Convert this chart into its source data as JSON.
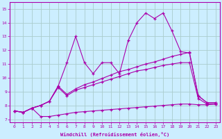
{
  "background_color": "#cceeff",
  "grid_color": "#aacccc",
  "line_color": "#aa00aa",
  "xlabel": "Windchill (Refroidissement éolien,°C)",
  "ylabel_ticks": [
    7,
    8,
    9,
    10,
    11,
    12,
    13,
    14,
    15
  ],
  "xlim": [
    -0.5,
    23.5
  ],
  "ylim": [
    6.8,
    15.5
  ],
  "xticks": [
    0,
    1,
    2,
    3,
    4,
    5,
    6,
    7,
    8,
    9,
    10,
    11,
    12,
    13,
    14,
    15,
    16,
    17,
    18,
    19,
    20,
    21,
    22,
    23
  ],
  "line1_x": [
    0,
    1,
    2,
    3,
    4,
    5,
    6,
    7,
    8,
    9,
    10,
    11,
    12,
    13,
    14,
    15,
    16,
    17,
    18,
    19,
    20,
    21,
    22,
    23
  ],
  "line1_y": [
    7.6,
    7.5,
    7.8,
    7.2,
    7.2,
    7.3,
    7.4,
    7.5,
    7.55,
    7.6,
    7.65,
    7.7,
    7.75,
    7.8,
    7.85,
    7.9,
    7.95,
    8.0,
    8.05,
    8.1,
    8.1,
    8.05,
    8.05,
    8.1
  ],
  "line2_x": [
    0,
    1,
    2,
    3,
    4,
    5,
    6,
    7,
    8,
    9,
    10,
    11,
    12,
    13,
    14,
    15,
    16,
    17,
    18,
    19,
    20,
    21,
    22,
    23
  ],
  "line2_y": [
    7.6,
    7.5,
    7.8,
    8.0,
    8.3,
    9.3,
    8.7,
    9.1,
    9.3,
    9.5,
    9.7,
    9.9,
    10.1,
    10.3,
    10.5,
    10.6,
    10.75,
    10.9,
    11.0,
    11.1,
    11.1,
    8.5,
    8.1,
    8.1
  ],
  "line3_x": [
    0,
    1,
    2,
    3,
    4,
    5,
    6,
    7,
    8,
    9,
    10,
    11,
    12,
    13,
    14,
    15,
    16,
    17,
    18,
    19,
    20,
    21,
    22,
    23
  ],
  "line3_y": [
    7.6,
    7.5,
    7.8,
    8.0,
    8.3,
    9.4,
    8.8,
    9.2,
    9.5,
    9.7,
    9.95,
    10.2,
    10.45,
    10.6,
    10.8,
    11.0,
    11.15,
    11.35,
    11.55,
    11.7,
    11.85,
    8.7,
    8.2,
    8.2
  ],
  "line4_x": [
    0,
    1,
    2,
    3,
    4,
    5,
    6,
    7,
    8,
    9,
    10,
    11,
    12,
    13,
    14,
    15,
    16,
    17,
    18,
    19,
    20,
    21,
    22,
    23
  ],
  "line4_y": [
    7.6,
    7.5,
    7.8,
    8.0,
    8.3,
    9.4,
    11.1,
    13.0,
    11.1,
    10.3,
    11.1,
    11.1,
    10.3,
    12.7,
    14.0,
    14.7,
    14.3,
    14.7,
    13.4,
    11.9,
    11.8,
    8.7,
    8.2,
    8.2
  ]
}
